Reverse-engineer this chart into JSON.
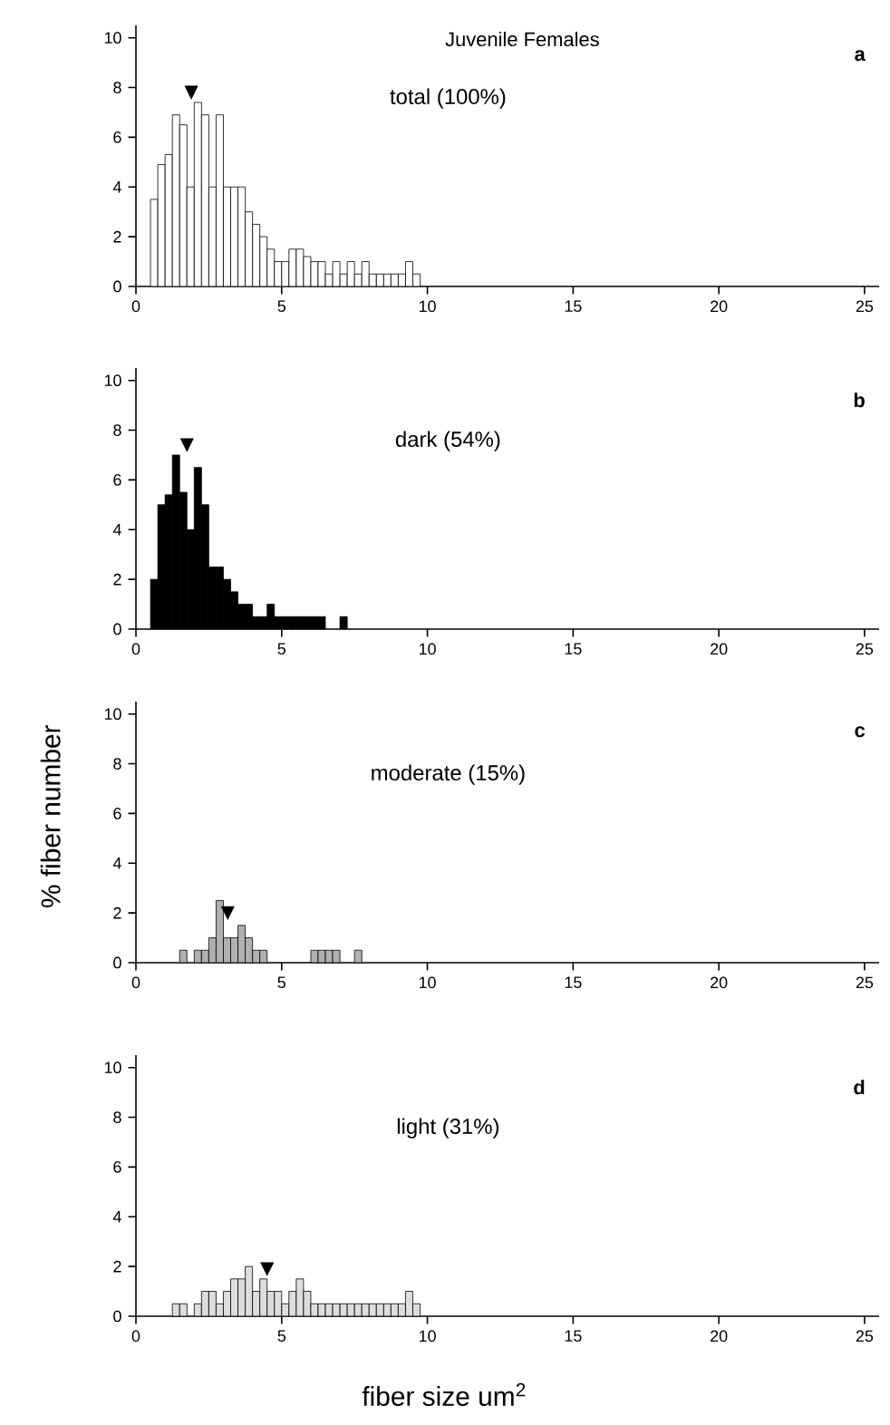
{
  "chart_data": [
    {
      "type": "histogram",
      "title": "Juvenile Females",
      "subtitle": "total (100%)",
      "color": "#ffffff",
      "bins": [
        0.5,
        0.75,
        1.0,
        1.25,
        1.5,
        1.75,
        2.0,
        2.25,
        2.5,
        2.75,
        3.0,
        3.25,
        3.5,
        3.75,
        4.0,
        4.25,
        4.5,
        4.75,
        5.0,
        5.25,
        5.5,
        5.75,
        6.0,
        6.25,
        6.5,
        6.75,
        7.0,
        7.25,
        7.5,
        7.75,
        8.0,
        8.25,
        8.5,
        8.75,
        9.0,
        9.25,
        9.5,
        9.75
      ],
      "values": [
        3.5,
        4.9,
        5.3,
        6.9,
        6.5,
        4.0,
        7.4,
        6.9,
        4.0,
        6.9,
        4.0,
        4.0,
        4.0,
        3.0,
        2.5,
        2.0,
        1.5,
        1.0,
        1.0,
        1.5,
        1.5,
        1.2,
        1.0,
        1.0,
        0.5,
        1.0,
        0.5,
        1.0,
        0.5,
        1.0,
        0.5,
        0.5,
        0.5,
        0.5,
        0.5,
        1.0,
        0.5
      ],
      "xlim": [
        0,
        25.5
      ],
      "ylim": [
        0,
        10.5
      ],
      "xticks": [
        0,
        5,
        10,
        15,
        20,
        25
      ],
      "yticks": [
        0,
        2,
        4,
        6,
        8,
        10
      ],
      "annotations": [
        "a",
        {
          "text": "▼",
          "x": 1.9,
          "y": 7.5
        }
      ]
    },
    {
      "type": "histogram",
      "subtitle": "dark (54%)",
      "color": "#000000",
      "bins": [
        0.5,
        0.75,
        1.0,
        1.25,
        1.5,
        1.75,
        2.0,
        2.25,
        2.5,
        2.75,
        3.0,
        3.25,
        3.5,
        3.75,
        4.0,
        4.25,
        4.5,
        4.75,
        5.0,
        5.25,
        5.5,
        5.75,
        6.0,
        6.25,
        6.5,
        6.75,
        7.0,
        7.25
      ],
      "values": [
        2.0,
        5.0,
        5.4,
        7.0,
        5.5,
        4.0,
        6.5,
        5.0,
        2.5,
        2.5,
        2.0,
        1.5,
        1.0,
        1.0,
        0.5,
        0.5,
        1.0,
        0.5,
        0.5,
        0.5,
        0.5,
        0.5,
        0.5,
        0.5,
        0,
        0,
        0.5
      ],
      "xlim": [
        0,
        25.5
      ],
      "ylim": [
        0,
        10.5
      ],
      "xticks": [
        0,
        5,
        10,
        15,
        20,
        25
      ],
      "yticks": [
        0,
        2,
        4,
        6,
        8,
        10
      ],
      "annotations": [
        "b",
        {
          "text": "▼",
          "x": 1.75,
          "y": 7.1
        }
      ]
    },
    {
      "type": "histogram",
      "subtitle": "moderate (15%)",
      "ylabel": "% fiber number",
      "color": "#b0b0b0",
      "bins": [
        1.5,
        1.75,
        2.0,
        2.25,
        2.5,
        2.75,
        3.0,
        3.25,
        3.5,
        3.75,
        4.0,
        4.25,
        4.5,
        4.75,
        5.0,
        5.25,
        5.5,
        5.75,
        6.0,
        6.25,
        6.5,
        6.75,
        7.0,
        7.25,
        7.5,
        7.75
      ],
      "values": [
        0.5,
        0,
        0.5,
        0.5,
        1.0,
        2.5,
        1.0,
        1.0,
        1.5,
        1.0,
        0.5,
        0.5,
        0,
        0,
        0,
        0,
        0,
        0,
        0.5,
        0.5,
        0.5,
        0.5,
        0,
        0,
        0.5
      ],
      "xlim": [
        0,
        25.5
      ],
      "ylim": [
        0,
        10.5
      ],
      "xticks": [
        0,
        5,
        10,
        15,
        20,
        25
      ],
      "yticks": [
        0,
        2,
        4,
        6,
        8,
        10
      ],
      "annotations": [
        "c",
        {
          "text": "▼",
          "x": 3.15,
          "y": 1.7
        }
      ]
    },
    {
      "type": "histogram",
      "subtitle": "light (31%)",
      "xlabel": "fiber size  um$^{2}$",
      "color": "#dddddd",
      "bins": [
        1.25,
        1.5,
        1.75,
        2.0,
        2.25,
        2.5,
        2.75,
        3.0,
        3.25,
        3.5,
        3.75,
        4.0,
        4.25,
        4.5,
        4.75,
        5.0,
        5.25,
        5.5,
        5.75,
        6.0,
        6.25,
        6.5,
        6.75,
        7.0,
        7.25,
        7.5,
        7.75,
        8.0,
        8.25,
        8.5,
        8.75,
        9.0,
        9.25,
        9.5,
        9.75
      ],
      "values": [
        0.5,
        0.5,
        0,
        0.5,
        1.0,
        1.0,
        0.5,
        1.0,
        1.5,
        1.5,
        2.0,
        1.0,
        1.5,
        1.0,
        1.0,
        0.5,
        1.0,
        1.5,
        1.0,
        0.5,
        0.5,
        0.5,
        0.5,
        0.5,
        0.5,
        0.5,
        0.5,
        0.5,
        0.5,
        0.5,
        0.5,
        0.5,
        1.0,
        0.5
      ],
      "xlim": [
        0,
        25.5
      ],
      "ylim": [
        0,
        10.5
      ],
      "xticks": [
        0,
        5,
        10,
        15,
        20,
        25
      ],
      "yticks": [
        0,
        2,
        4,
        6,
        8,
        10
      ],
      "annotations": [
        "d",
        {
          "text": "▼",
          "x": 4.5,
          "y": 1.6
        }
      ]
    }
  ]
}
